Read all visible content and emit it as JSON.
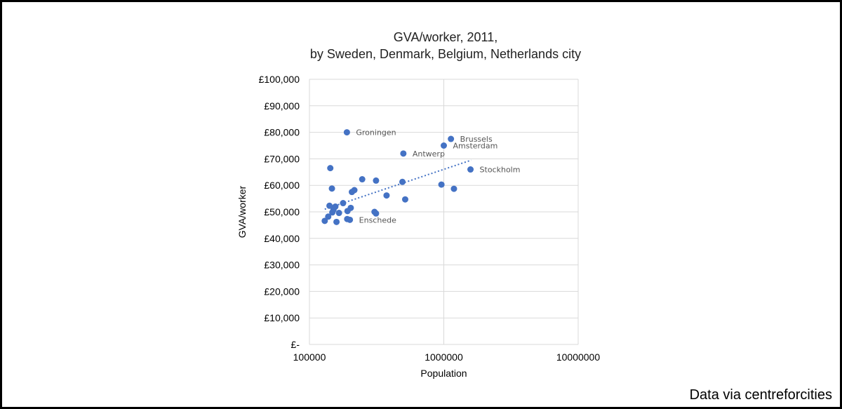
{
  "chart_data": {
    "type": "scatter",
    "title": "GVA/worker, 2011,",
    "subtitle": "by Sweden, Denmark, Belgium, Netherlands city",
    "xlabel": "Population",
    "ylabel": "GVA/worker",
    "x_scale": "log",
    "xlim": [
      100000,
      10000000
    ],
    "ylim": [
      0,
      100000
    ],
    "x_ticks": [
      "100000",
      "1000000",
      "10000000"
    ],
    "y_ticks": [
      "£-",
      "£10,000",
      "£20,000",
      "£30,000",
      "£40,000",
      "£50,000",
      "£60,000",
      "£70,000",
      "£80,000",
      "£90,000",
      "£100,000"
    ],
    "grid": true,
    "trendline": {
      "style": "dotted",
      "type": "logarithmic",
      "x": [
        130000,
        1600000
      ],
      "y": [
        51000,
        69500
      ]
    },
    "points": [
      {
        "x": 190000,
        "y": 80000,
        "label": "Groningen"
      },
      {
        "x": 1130000,
        "y": 77500,
        "label": "Brussels"
      },
      {
        "x": 1000000,
        "y": 75000,
        "label": "Amsterdam"
      },
      {
        "x": 500000,
        "y": 72000,
        "label": "Antwerp"
      },
      {
        "x": 1580000,
        "y": 66000,
        "label": "Stockholm"
      },
      {
        "x": 200000,
        "y": 47000,
        "label": "Enschede"
      },
      {
        "x": 143000,
        "y": 66500
      },
      {
        "x": 147000,
        "y": 58800
      },
      {
        "x": 247000,
        "y": 62300
      },
      {
        "x": 313000,
        "y": 61800
      },
      {
        "x": 216000,
        "y": 58200
      },
      {
        "x": 207000,
        "y": 57500
      },
      {
        "x": 375000,
        "y": 56200
      },
      {
        "x": 492000,
        "y": 61300
      },
      {
        "x": 960000,
        "y": 60300
      },
      {
        "x": 1190000,
        "y": 58700
      },
      {
        "x": 516000,
        "y": 54700
      },
      {
        "x": 178000,
        "y": 53300
      },
      {
        "x": 141000,
        "y": 52300
      },
      {
        "x": 156000,
        "y": 52000
      },
      {
        "x": 203000,
        "y": 51500
      },
      {
        "x": 151000,
        "y": 50800
      },
      {
        "x": 192000,
        "y": 50300
      },
      {
        "x": 148000,
        "y": 49800
      },
      {
        "x": 166000,
        "y": 49600
      },
      {
        "x": 305000,
        "y": 50000
      },
      {
        "x": 313000,
        "y": 49400
      },
      {
        "x": 138000,
        "y": 48200
      },
      {
        "x": 191000,
        "y": 47300
      },
      {
        "x": 130000,
        "y": 46600
      },
      {
        "x": 159000,
        "y": 46200
      }
    ],
    "marker_color": "#4472c4"
  },
  "footer": {
    "credit": "Data via centreforcities"
  }
}
